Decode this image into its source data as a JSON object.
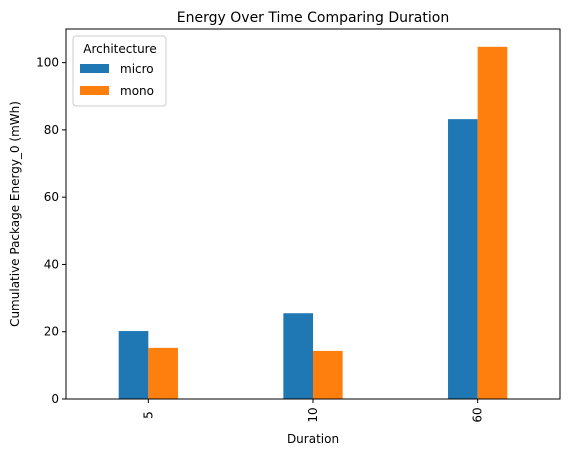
{
  "chart_data": {
    "type": "bar",
    "title": "Energy Over Time Comparing Duration",
    "xlabel": "Duration",
    "ylabel": "Cumulative Package Energy_0 (mWh)",
    "categories": [
      "5",
      "10",
      "60"
    ],
    "series": [
      {
        "name": "micro",
        "color": "#1f77b4",
        "values": [
          20.2,
          25.5,
          83.2
        ]
      },
      {
        "name": "mono",
        "color": "#ff7f0e",
        "values": [
          15.2,
          14.3,
          104.7
        ]
      }
    ],
    "ylim": [
      0,
      110
    ],
    "yticks": [
      0,
      20,
      40,
      60,
      80,
      100
    ],
    "grid": false,
    "legend": {
      "title": "Architecture",
      "placement": "top-left"
    }
  }
}
